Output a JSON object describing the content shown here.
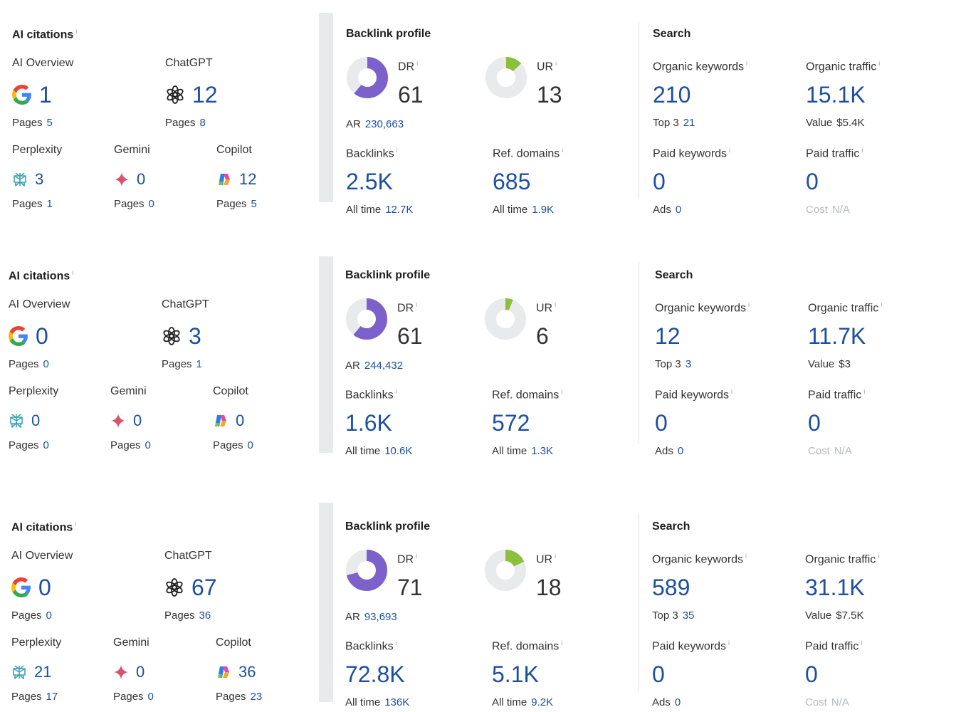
{
  "blocks": [
    {
      "ai": {
        "title": "AI citations",
        "info": "i",
        "ai_overview": {
          "label": "AI Overview",
          "value": "1",
          "sub_label": "Pages",
          "sub_value": "5"
        },
        "chatgpt": {
          "label": "ChatGPT",
          "value": "12",
          "sub_label": "Pages",
          "sub_value": "8"
        },
        "perplexity": {
          "label": "Perplexity",
          "value": "3",
          "sub_label": "Pages",
          "sub_value": "1"
        },
        "gemini": {
          "label": "Gemini",
          "value": "0",
          "sub_label": "Pages",
          "sub_value": "0"
        },
        "copilot": {
          "label": "Copilot",
          "value": "12",
          "sub_label": "Pages",
          "sub_value": "5"
        }
      },
      "backlink": {
        "title": "Backlink profile",
        "dr": {
          "label": "DR",
          "info": "i",
          "value": "61",
          "fraction": 0.61,
          "sub_label": "AR",
          "sub_value": "230,663"
        },
        "ur": {
          "label": "UR",
          "info": "i",
          "value": "13",
          "fraction": 0.13
        },
        "backlinks": {
          "label": "Backlinks",
          "info": "i",
          "value": "2.5K",
          "sub_label": "All time",
          "sub_value": "12.7K"
        },
        "ref_domains": {
          "label": "Ref. domains",
          "info": "i",
          "value": "685",
          "sub_label": "All time",
          "sub_value": "1.9K"
        }
      },
      "search": {
        "title": "Search",
        "organic_keywords": {
          "label": "Organic keywords",
          "info": "i",
          "value": "210",
          "sub_label": "Top 3",
          "sub_value": "21"
        },
        "organic_traffic": {
          "label": "Organic traffic",
          "info": "i",
          "value": "15.1K",
          "sub_label": "Value",
          "sub_value": "$5.4K"
        },
        "paid_keywords": {
          "label": "Paid keywords",
          "info": "i",
          "value": "0",
          "sub_label": "Ads",
          "sub_value": "0"
        },
        "paid_traffic": {
          "label": "Paid traffic",
          "info": "i",
          "value": "0",
          "sub_label": "Cost",
          "sub_value": "N/A"
        }
      }
    },
    {
      "ai": {
        "title": "AI citations",
        "info": "i",
        "ai_overview": {
          "label": "AI Overview",
          "value": "0",
          "sub_label": "Pages",
          "sub_value": "0"
        },
        "chatgpt": {
          "label": "ChatGPT",
          "value": "3",
          "sub_label": "Pages",
          "sub_value": "1"
        },
        "perplexity": {
          "label": "Perplexity",
          "value": "0",
          "sub_label": "Pages",
          "sub_value": "0"
        },
        "gemini": {
          "label": "Gemini",
          "value": "0",
          "sub_label": "Pages",
          "sub_value": "0"
        },
        "copilot": {
          "label": "Copilot",
          "value": "0",
          "sub_label": "Pages",
          "sub_value": "0"
        }
      },
      "backlink": {
        "title": "Backlink profile",
        "dr": {
          "label": "DR",
          "info": "i",
          "value": "61",
          "fraction": 0.61,
          "sub_label": "AR",
          "sub_value": "244,432"
        },
        "ur": {
          "label": "UR",
          "info": "i",
          "value": "6",
          "fraction": 0.06
        },
        "backlinks": {
          "label": "Backlinks",
          "info": "i",
          "value": "1.6K",
          "sub_label": "All time",
          "sub_value": "10.6K"
        },
        "ref_domains": {
          "label": "Ref. domains",
          "info": "i",
          "value": "572",
          "sub_label": "All time",
          "sub_value": "1.3K"
        }
      },
      "search": {
        "title": "Search",
        "organic_keywords": {
          "label": "Organic keywords",
          "info": "i",
          "value": "12",
          "sub_label": "Top 3",
          "sub_value": "3"
        },
        "organic_traffic": {
          "label": "Organic traffic",
          "info": "i",
          "value": "11.7K",
          "sub_label": "Value",
          "sub_value": "$3"
        },
        "paid_keywords": {
          "label": "Paid keywords",
          "info": "i",
          "value": "0",
          "sub_label": "Ads",
          "sub_value": "0"
        },
        "paid_traffic": {
          "label": "Paid traffic",
          "info": "i",
          "value": "0",
          "sub_label": "Cost",
          "sub_value": "N/A"
        }
      }
    },
    {
      "ai": {
        "title": "AI citations",
        "info": "i",
        "ai_overview": {
          "label": "AI Overview",
          "value": "0",
          "sub_label": "Pages",
          "sub_value": "0"
        },
        "chatgpt": {
          "label": "ChatGPT",
          "value": "67",
          "sub_label": "Pages",
          "sub_value": "36"
        },
        "perplexity": {
          "label": "Perplexity",
          "value": "21",
          "sub_label": "Pages",
          "sub_value": "17"
        },
        "gemini": {
          "label": "Gemini",
          "value": "0",
          "sub_label": "Pages",
          "sub_value": "0"
        },
        "copilot": {
          "label": "Copilot",
          "value": "36",
          "sub_label": "Pages",
          "sub_value": "23"
        }
      },
      "backlink": {
        "title": "Backlink profile",
        "dr": {
          "label": "DR",
          "info": "i",
          "value": "71",
          "fraction": 0.71,
          "sub_label": "AR",
          "sub_value": "93,693"
        },
        "ur": {
          "label": "UR",
          "info": "i",
          "value": "18",
          "fraction": 0.18
        },
        "backlinks": {
          "label": "Backlinks",
          "info": "i",
          "value": "72.8K",
          "sub_label": "All time",
          "sub_value": "136K"
        },
        "ref_domains": {
          "label": "Ref. domains",
          "info": "i",
          "value": "5.1K",
          "sub_label": "All time",
          "sub_value": "9.2K"
        }
      },
      "search": {
        "title": "Search",
        "organic_keywords": {
          "label": "Organic keywords",
          "info": "i",
          "value": "589",
          "sub_label": "Top 3",
          "sub_value": "35"
        },
        "organic_traffic": {
          "label": "Organic traffic",
          "info": "i",
          "value": "31.1K",
          "sub_label": "Value",
          "sub_value": "$7.5K"
        },
        "paid_keywords": {
          "label": "Paid keywords",
          "info": "i",
          "value": "0",
          "sub_label": "Ads",
          "sub_value": "0"
        },
        "paid_traffic": {
          "label": "Paid traffic",
          "info": "i",
          "value": "0",
          "sub_label": "Cost",
          "sub_value": "N/A"
        }
      }
    }
  ],
  "icons": {
    "ai_overview": "google-icon",
    "chatgpt": "chatgpt-icon",
    "perplexity": "perplexity-icon",
    "gemini": "gemini-icon",
    "copilot": "copilot-icon"
  },
  "colors": {
    "value_blue": "#1d4f9f",
    "dr_purple": "#7b61c9",
    "ur_green": "#8bbf3c",
    "donut_track": "#e9eaec"
  }
}
